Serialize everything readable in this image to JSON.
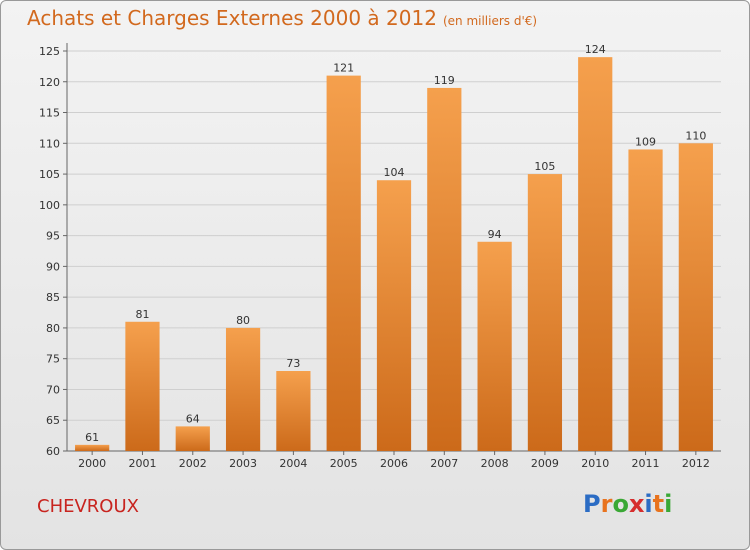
{
  "header": {
    "title": "Achats et Charges Externes 2000 à 2012",
    "subtitle": "(en milliers d'€)"
  },
  "footer": {
    "commune": "CHEVROUX",
    "logo_letters": [
      "P",
      "r",
      "o",
      "x",
      "i",
      "t",
      "i"
    ],
    "logo_colors": [
      "#2b6cc4",
      "#e8731e",
      "#3aa835",
      "#d62d2d",
      "#2b6cc4",
      "#e8731e",
      "#3aa835"
    ]
  },
  "colors": {
    "bar_light": "#f5a04d",
    "bar_dark": "#cc6a1a",
    "title": "#d2691e",
    "commune": "#c8241f"
  },
  "chart_data": {
    "type": "bar",
    "title": "Achats et Charges Externes 2000 à 2012",
    "subtitle": "(en milliers d'€)",
    "categories": [
      "2000",
      "2001",
      "2002",
      "2003",
      "2004",
      "2005",
      "2006",
      "2007",
      "2008",
      "2009",
      "2010",
      "2011",
      "2012"
    ],
    "values": [
      61,
      81,
      64,
      80,
      73,
      121,
      104,
      119,
      94,
      105,
      124,
      109,
      110
    ],
    "ylim": [
      60,
      125
    ],
    "yticks": [
      60,
      65,
      70,
      75,
      80,
      85,
      90,
      95,
      100,
      105,
      110,
      115,
      120,
      125
    ],
    "grid": true,
    "legend": "none"
  }
}
